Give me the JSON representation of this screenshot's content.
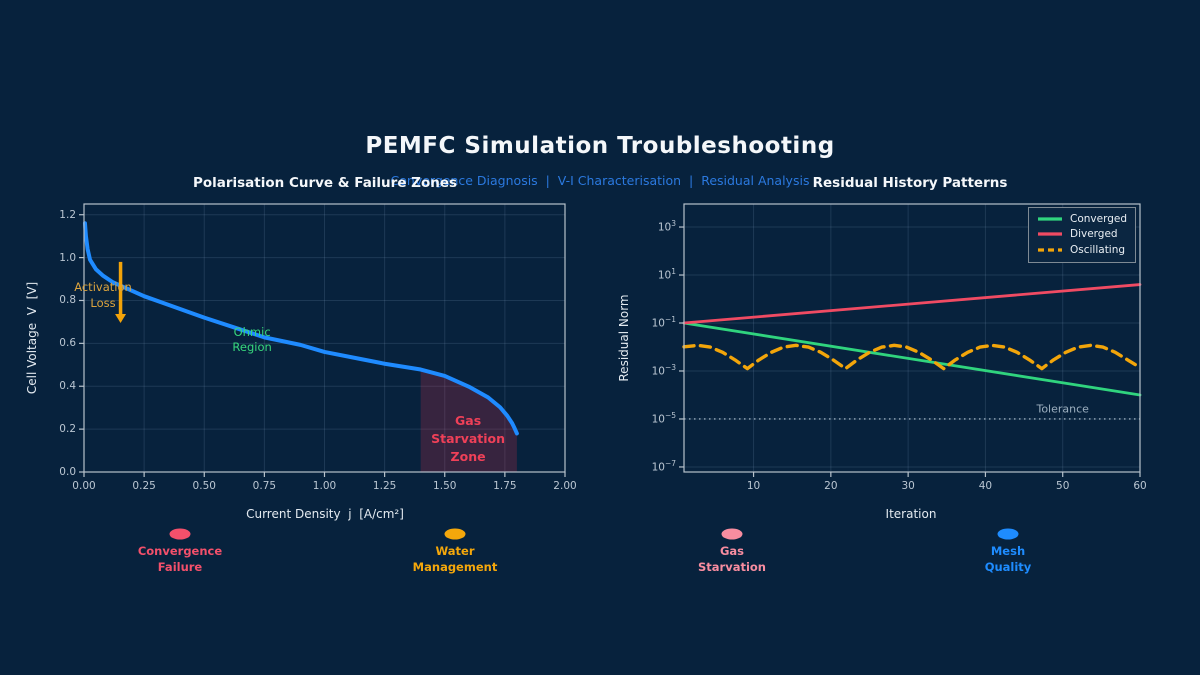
{
  "header": {
    "title": "PEMFC Simulation Troubleshooting",
    "subtitle": "Convergence Diagnosis  |  V-I Characterisation  |  Residual Analysis"
  },
  "colors": {
    "background": "#07223d",
    "curve_blue": "#1f8bff",
    "converged_green": "#30d47e",
    "diverged_red": "#f04b63",
    "oscillating_orange": "#f2a50a",
    "zone_fill": "rgba(228,45,75,0.22)",
    "zone_text": "#ef4058",
    "activation_orange": "#dca43e",
    "ohmic_green": "#37d77c",
    "tolerance_gray": "#9db0c0",
    "grid": "rgba(150,180,210,0.16)",
    "spine": "#b7c2cc"
  },
  "chart_data": [
    {
      "type": "line",
      "title": "Polarisation Curve & Failure Zones",
      "xlabel": "Current Density  j  [A/cm²]",
      "ylabel": "Cell Voltage  V  [V]",
      "xlim": [
        0,
        2.0
      ],
      "ylim": [
        0,
        1.25
      ],
      "grid": true,
      "xticks": [
        {
          "v": 0.0,
          "label": "0.00"
        },
        {
          "v": 0.25,
          "label": "0.25"
        },
        {
          "v": 0.5,
          "label": "0.50"
        },
        {
          "v": 0.75,
          "label": "0.75"
        },
        {
          "v": 1.0,
          "label": "1.00"
        },
        {
          "v": 1.25,
          "label": "1.25"
        },
        {
          "v": 1.5,
          "label": "1.50"
        },
        {
          "v": 1.75,
          "label": "1.75"
        },
        {
          "v": 2.0,
          "label": "2.00"
        }
      ],
      "yticks": [
        {
          "v": 0.0,
          "label": "0.0"
        },
        {
          "v": 0.2,
          "label": "0.2"
        },
        {
          "v": 0.4,
          "label": "0.4"
        },
        {
          "v": 0.6,
          "label": "0.6"
        },
        {
          "v": 0.8,
          "label": "0.8"
        },
        {
          "v": 1.0,
          "label": "1.0"
        },
        {
          "v": 1.2,
          "label": "1.2"
        }
      ],
      "series": [
        {
          "name": "polarisation-curve",
          "color": "#1f8bff",
          "width": 4,
          "points": [
            [
              0.004,
              1.16
            ],
            [
              0.008,
              1.1
            ],
            [
              0.015,
              1.04
            ],
            [
              0.025,
              0.99
            ],
            [
              0.05,
              0.945
            ],
            [
              0.08,
              0.915
            ],
            [
              0.12,
              0.885
            ],
            [
              0.18,
              0.855
            ],
            [
              0.25,
              0.82
            ],
            [
              0.35,
              0.78
            ],
            [
              0.5,
              0.72
            ],
            [
              0.65,
              0.665
            ],
            [
              0.75,
              0.628
            ],
            [
              0.9,
              0.593
            ],
            [
              1.0,
              0.56
            ],
            [
              1.15,
              0.527
            ],
            [
              1.25,
              0.505
            ],
            [
              1.4,
              0.478
            ],
            [
              1.5,
              0.448
            ],
            [
              1.6,
              0.398
            ],
            [
              1.68,
              0.348
            ],
            [
              1.73,
              0.302
            ],
            [
              1.76,
              0.262
            ],
            [
              1.78,
              0.228
            ],
            [
              1.79,
              0.205
            ],
            [
              1.8,
              0.18
            ]
          ]
        }
      ],
      "zone": {
        "label": "Gas Starvation Zone",
        "x_range": [
          1.4,
          1.8
        ],
        "fill": "rgba(228,45,75,0.22)"
      },
      "annotations": [
        {
          "name": "activation-loss-label",
          "lines": [
            "Activation",
            "Loss"
          ],
          "x": 0.079,
          "y": 0.825,
          "color": "#dca43e",
          "size": 11.5,
          "bold": false,
          "line_h": 16
        },
        {
          "name": "ohmic-region-label",
          "lines": [
            "Ohmic",
            "Region"
          ],
          "x": 0.699,
          "y": 0.618,
          "color": "#37d77c",
          "size": 11.5,
          "bold": false,
          "line_h": 15
        },
        {
          "name": "gas-starvation-zone-label",
          "lines": [
            "Gas",
            "Starvation",
            "Zone"
          ],
          "x": 1.597,
          "y": 0.154,
          "color": "#ef4058",
          "size": 12.5,
          "bold": true,
          "line_h": 18
        }
      ],
      "arrow": {
        "x": 0.152,
        "y_from": 0.98,
        "y_to": 0.695,
        "color": "#f2a30a"
      }
    },
    {
      "type": "line",
      "yscale": "log",
      "title": "Residual History Patterns",
      "xlabel": "Iteration",
      "ylabel": "Residual Norm",
      "xlim": [
        1,
        60
      ],
      "ylim_log10": [
        -7.21,
        3.96
      ],
      "grid": true,
      "xticks": [
        {
          "v": 10,
          "label": "10"
        },
        {
          "v": 20,
          "label": "20"
        },
        {
          "v": 30,
          "label": "30"
        },
        {
          "v": 40,
          "label": "40"
        },
        {
          "v": 50,
          "label": "50"
        },
        {
          "v": 60,
          "label": "60"
        }
      ],
      "ytick_exponents": [
        3,
        1,
        -1,
        -3,
        -5,
        -7
      ],
      "legend": {
        "position": "upper-right"
      },
      "series": [
        {
          "name": "Converged",
          "color": "#30d47e",
          "width": 2.8,
          "dash": null,
          "points": [
            [
              1,
              0.1
            ],
            [
              30.5,
              0.00316
            ],
            [
              60,
              0.0001
            ]
          ]
        },
        {
          "name": "Diverged",
          "color": "#f04b63",
          "width": 2.8,
          "dash": null,
          "points": [
            [
              1,
              0.1
            ],
            [
              60,
              4.0
            ]
          ]
        },
        {
          "name": "Oscillating",
          "color": "#f2a50a",
          "width": 3.4,
          "dash": "10 6.5",
          "points": [
            [
              1,
              0.0102
            ],
            [
              2.8,
              0.0117
            ],
            [
              4.4,
              0.0099
            ],
            [
              6,
              0.006
            ],
            [
              7.6,
              0.0029
            ],
            [
              9.2,
              0.00126
            ],
            [
              10.7,
              0.0029
            ],
            [
              12.3,
              0.006
            ],
            [
              13.9,
              0.0099
            ],
            [
              15.5,
              0.0117
            ],
            [
              17.1,
              0.0099
            ],
            [
              18.7,
              0.006
            ],
            [
              20.3,
              0.0029
            ],
            [
              21.9,
              0.00126
            ],
            [
              23.4,
              0.0029
            ],
            [
              25,
              0.006
            ],
            [
              26.6,
              0.0099
            ],
            [
              28.2,
              0.0117
            ],
            [
              29.8,
              0.0099
            ],
            [
              31.4,
              0.006
            ],
            [
              33,
              0.0029
            ],
            [
              34.6,
              0.00126
            ],
            [
              36.1,
              0.0029
            ],
            [
              37.7,
              0.006
            ],
            [
              39.3,
              0.0099
            ],
            [
              40.9,
              0.0117
            ],
            [
              42.5,
              0.0099
            ],
            [
              44.1,
              0.006
            ],
            [
              45.7,
              0.0029
            ],
            [
              47.3,
              0.00126
            ],
            [
              48.8,
              0.0029
            ],
            [
              50.4,
              0.006
            ],
            [
              52,
              0.0099
            ],
            [
              53.6,
              0.0117
            ],
            [
              55.2,
              0.0099
            ],
            [
              56.8,
              0.006
            ],
            [
              58.4,
              0.0029
            ],
            [
              60,
              0.0014
            ]
          ]
        }
      ],
      "tolerance": {
        "value": 1e-05,
        "label": "Tolerance",
        "color": "#9db0c0",
        "label_x": 50
      }
    }
  ],
  "footer_markers": [
    {
      "lines": [
        "Convergence",
        "Failure"
      ],
      "color": "#f3506b"
    },
    {
      "lines": [
        "Water",
        "Management"
      ],
      "color": "#f4a70b"
    },
    {
      "lines": [
        "Gas",
        "Starvation"
      ],
      "color": "#f88da0"
    },
    {
      "lines": [
        "Mesh",
        "Quality"
      ],
      "color": "#1e8cff"
    }
  ]
}
